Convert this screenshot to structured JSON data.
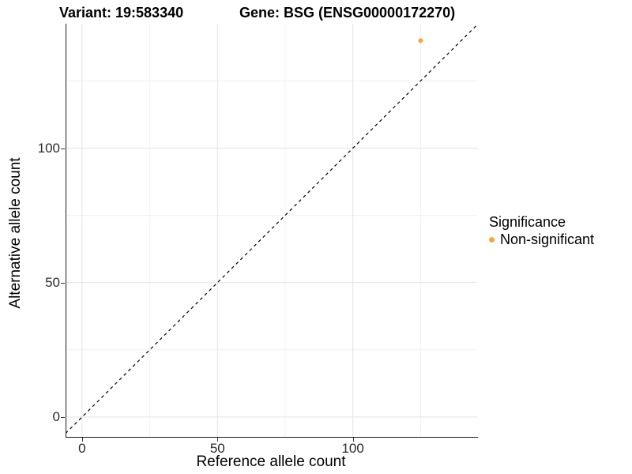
{
  "chart_data": {
    "type": "scatter",
    "titles": {
      "left": "Variant: 19:583340",
      "right": "Gene: BSG (ENSG00000172270)"
    },
    "xlabel": "Reference allele count",
    "ylabel": "Alternative allele count",
    "xlim": [
      -6.1,
      145.9
    ],
    "ylim": [
      -7.4,
      146.3
    ],
    "x_major_ticks": [
      0,
      50,
      100
    ],
    "y_major_ticks": [
      0,
      50,
      100
    ],
    "x_minor_gridlines": [
      25,
      75,
      125
    ],
    "y_minor_gridlines": [
      25,
      75,
      125
    ],
    "points": [
      {
        "x": 125,
        "y": 140,
        "significance": "Non-significant"
      }
    ],
    "identity_line": {
      "style": "dashed",
      "color": "#000000",
      "slope": 1,
      "intercept": 0
    },
    "legend": {
      "title": "Significance",
      "position": "right",
      "entries": [
        {
          "label": "Non-significant",
          "color": "#F9A33C"
        }
      ]
    },
    "colors": {
      "point": "#F9A33C",
      "major_grid": "#E3E3E3",
      "minor_grid": "#F0F0F0",
      "axis_line": "#1a1a1a",
      "tick": "#333333",
      "background": "#FFFFFF"
    },
    "grid": true
  }
}
